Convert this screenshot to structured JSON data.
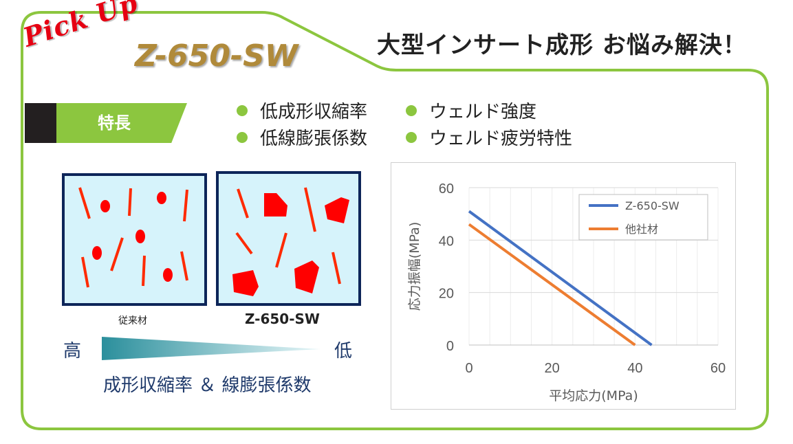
{
  "header": {
    "pick_up": "Pick Up",
    "model": "Z-650-SW",
    "headline": "大型インサート成形 お悩み解決！"
  },
  "features": {
    "label": "特長",
    "items": [
      "低成形収縮率",
      "ウェルド強度",
      "低線膨張係数",
      "ウェルド疲労特性"
    ]
  },
  "illustration": {
    "left_caption": "従来材",
    "right_caption": "Z-650-SW",
    "high_label": "高",
    "low_label": "低",
    "scale_caption": "成形収縮率 ＆ 線膨張係数"
  },
  "colors": {
    "frame_green": "#8cc63f",
    "fiber_red": "#ff2a00",
    "box_border": "#0d2559",
    "box_fill": "#d6f3fb",
    "series_blue": "#4472c4",
    "series_orange": "#ed7d31",
    "text_navy": "#1f3a6b"
  },
  "chart_data": {
    "type": "line",
    "xlabel": "平均応力(MPa)",
    "ylabel": "応力振幅(MPa)",
    "xlim": [
      0,
      60
    ],
    "ylim": [
      0,
      60
    ],
    "xticks": [
      "0",
      "20",
      "40",
      "60"
    ],
    "yticks": [
      "0",
      "20",
      "40",
      "60"
    ],
    "grid": true,
    "legend": "top-right",
    "series": [
      {
        "name": "Z-650-SW",
        "color": "#4472c4",
        "x": [
          0,
          44
        ],
        "y": [
          51,
          0
        ]
      },
      {
        "name": "他社材",
        "color": "#ed7d31",
        "x": [
          0,
          40
        ],
        "y": [
          46,
          0
        ]
      }
    ]
  }
}
